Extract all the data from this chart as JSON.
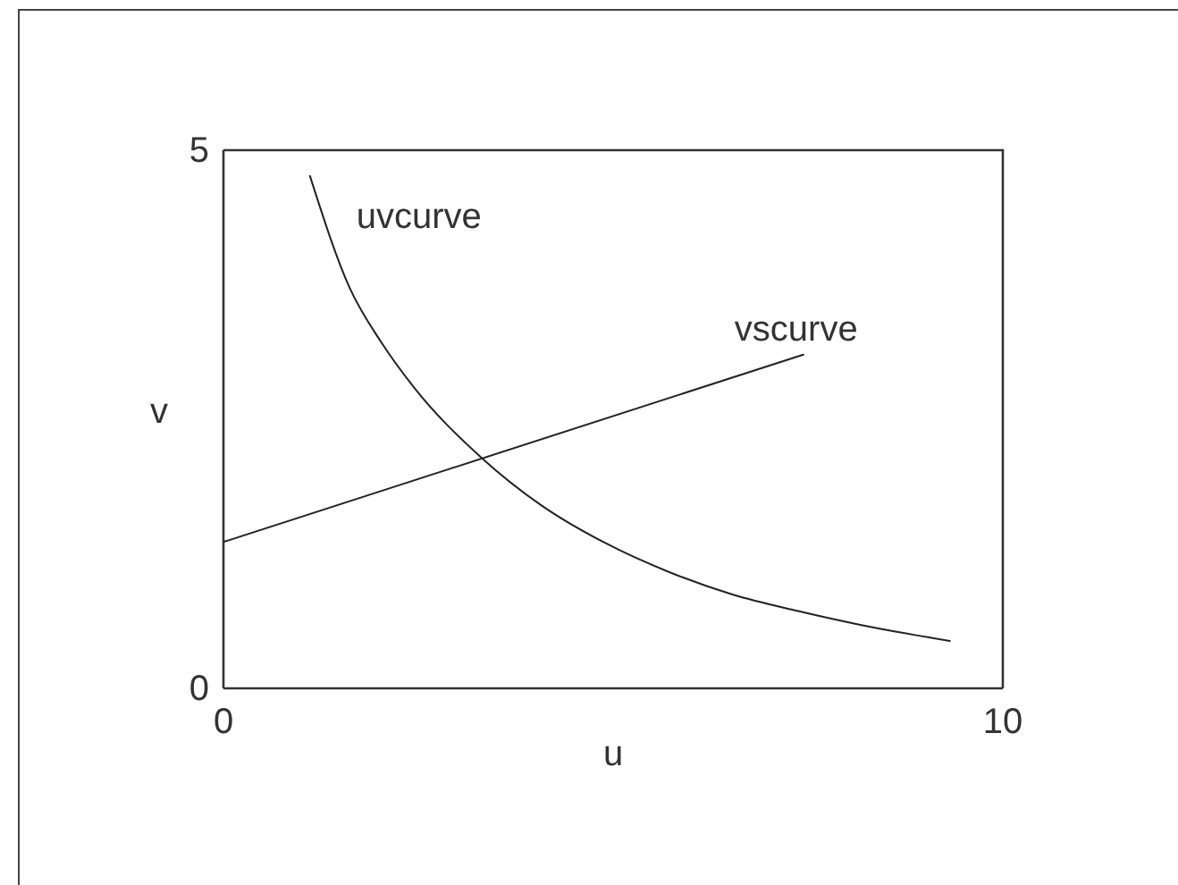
{
  "chart_data": {
    "type": "line",
    "xlabel": "u",
    "ylabel": "v",
    "xlim": [
      0,
      10
    ],
    "ylim": [
      0,
      5
    ],
    "xticks": [
      0,
      10
    ],
    "yticks": [
      0,
      5
    ],
    "line_style": "solid",
    "series": [
      {
        "name": "uvcurve",
        "color": "#222222",
        "x": [
          1.11,
          1.62,
          2.03,
          2.44,
          3.3,
          4.08,
          4.9,
          5.72,
          6.54,
          7.36,
          8.17,
          9.32
        ],
        "values": [
          4.76,
          3.72,
          3.21,
          2.8,
          2.15,
          1.7,
          1.35,
          1.08,
          0.87,
          0.72,
          0.59,
          0.44
        ]
      },
      {
        "name": "vscurve",
        "color": "#222222",
        "x": [
          0,
          7.44
        ],
        "values": [
          1.36,
          3.1
        ]
      }
    ]
  }
}
